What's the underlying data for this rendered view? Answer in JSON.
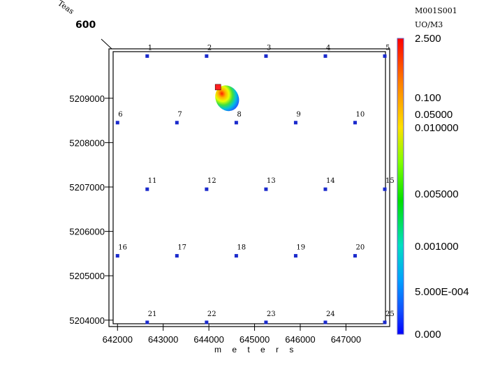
{
  "header": {
    "scenario": "M001S001",
    "units": "UO/M3",
    "corner_label_top": "Teas",
    "corner_label_bottom": "600"
  },
  "chart_data": {
    "type": "scatter",
    "title": "",
    "xlabel": "m e t e r s",
    "ylabel": "",
    "xlim": [
      641950,
      647850
    ],
    "ylim": [
      5203950,
      5210050
    ],
    "x_ticks": [
      642000,
      643000,
      644000,
      645000,
      646000,
      647000
    ],
    "x_tick_labels": [
      "642000",
      "643000",
      "644000",
      "645000",
      "646000",
      "647000"
    ],
    "y_ticks": [
      5204000,
      5205000,
      5206000,
      5207000,
      5208000,
      5209000
    ],
    "y_tick_labels": [
      "5204000",
      "5205000",
      "5206000",
      "5207000",
      "5208000",
      "5209000"
    ],
    "receptors": [
      {
        "id": "1",
        "x": 642650,
        "y": 5209950
      },
      {
        "id": "2",
        "x": 643950,
        "y": 5209950
      },
      {
        "id": "3",
        "x": 645250,
        "y": 5209950
      },
      {
        "id": "4",
        "x": 646550,
        "y": 5209950
      },
      {
        "id": "5",
        "x": 647850,
        "y": 5209950
      },
      {
        "id": "6",
        "x": 642000,
        "y": 5208450
      },
      {
        "id": "7",
        "x": 643300,
        "y": 5208450
      },
      {
        "id": "8",
        "x": 644600,
        "y": 5208450
      },
      {
        "id": "9",
        "x": 645900,
        "y": 5208450
      },
      {
        "id": "10",
        "x": 647200,
        "y": 5208450
      },
      {
        "id": "11",
        "x": 642650,
        "y": 5206950
      },
      {
        "id": "12",
        "x": 643950,
        "y": 5206950
      },
      {
        "id": "13",
        "x": 645250,
        "y": 5206950
      },
      {
        "id": "14",
        "x": 646550,
        "y": 5206950
      },
      {
        "id": "15",
        "x": 647850,
        "y": 5206950
      },
      {
        "id": "16",
        "x": 642000,
        "y": 5205450
      },
      {
        "id": "17",
        "x": 643300,
        "y": 5205450
      },
      {
        "id": "18",
        "x": 644600,
        "y": 5205450
      },
      {
        "id": "19",
        "x": 645900,
        "y": 5205450
      },
      {
        "id": "20",
        "x": 647200,
        "y": 5205450
      },
      {
        "id": "21",
        "x": 642650,
        "y": 5203950
      },
      {
        "id": "22",
        "x": 643950,
        "y": 5203950
      },
      {
        "id": "23",
        "x": 645250,
        "y": 5203950
      },
      {
        "id": "24",
        "x": 646550,
        "y": 5203950
      },
      {
        "id": "25",
        "x": 647850,
        "y": 5203950
      }
    ],
    "source": {
      "x": 644200,
      "y": 5209250,
      "color": "#ff2020"
    },
    "plume": {
      "x": 644400,
      "y": 5209000,
      "width_m": 500,
      "height_m": 600
    },
    "legend": {
      "position": "right",
      "labels": [
        "2.500",
        "0.100",
        "0.05000",
        "0.010000",
        "0.005000",
        "0.001000",
        "5.000E-004",
        "0.000"
      ],
      "colors_top_to_bottom": [
        "#ff0000",
        "#ff7f00",
        "#ffd700",
        "#7fff00",
        "#00e000",
        "#00e0c0",
        "#00b0ff",
        "#1050ff",
        "#0000ff"
      ]
    },
    "marker_color": "#1a2acc",
    "grid": false
  }
}
